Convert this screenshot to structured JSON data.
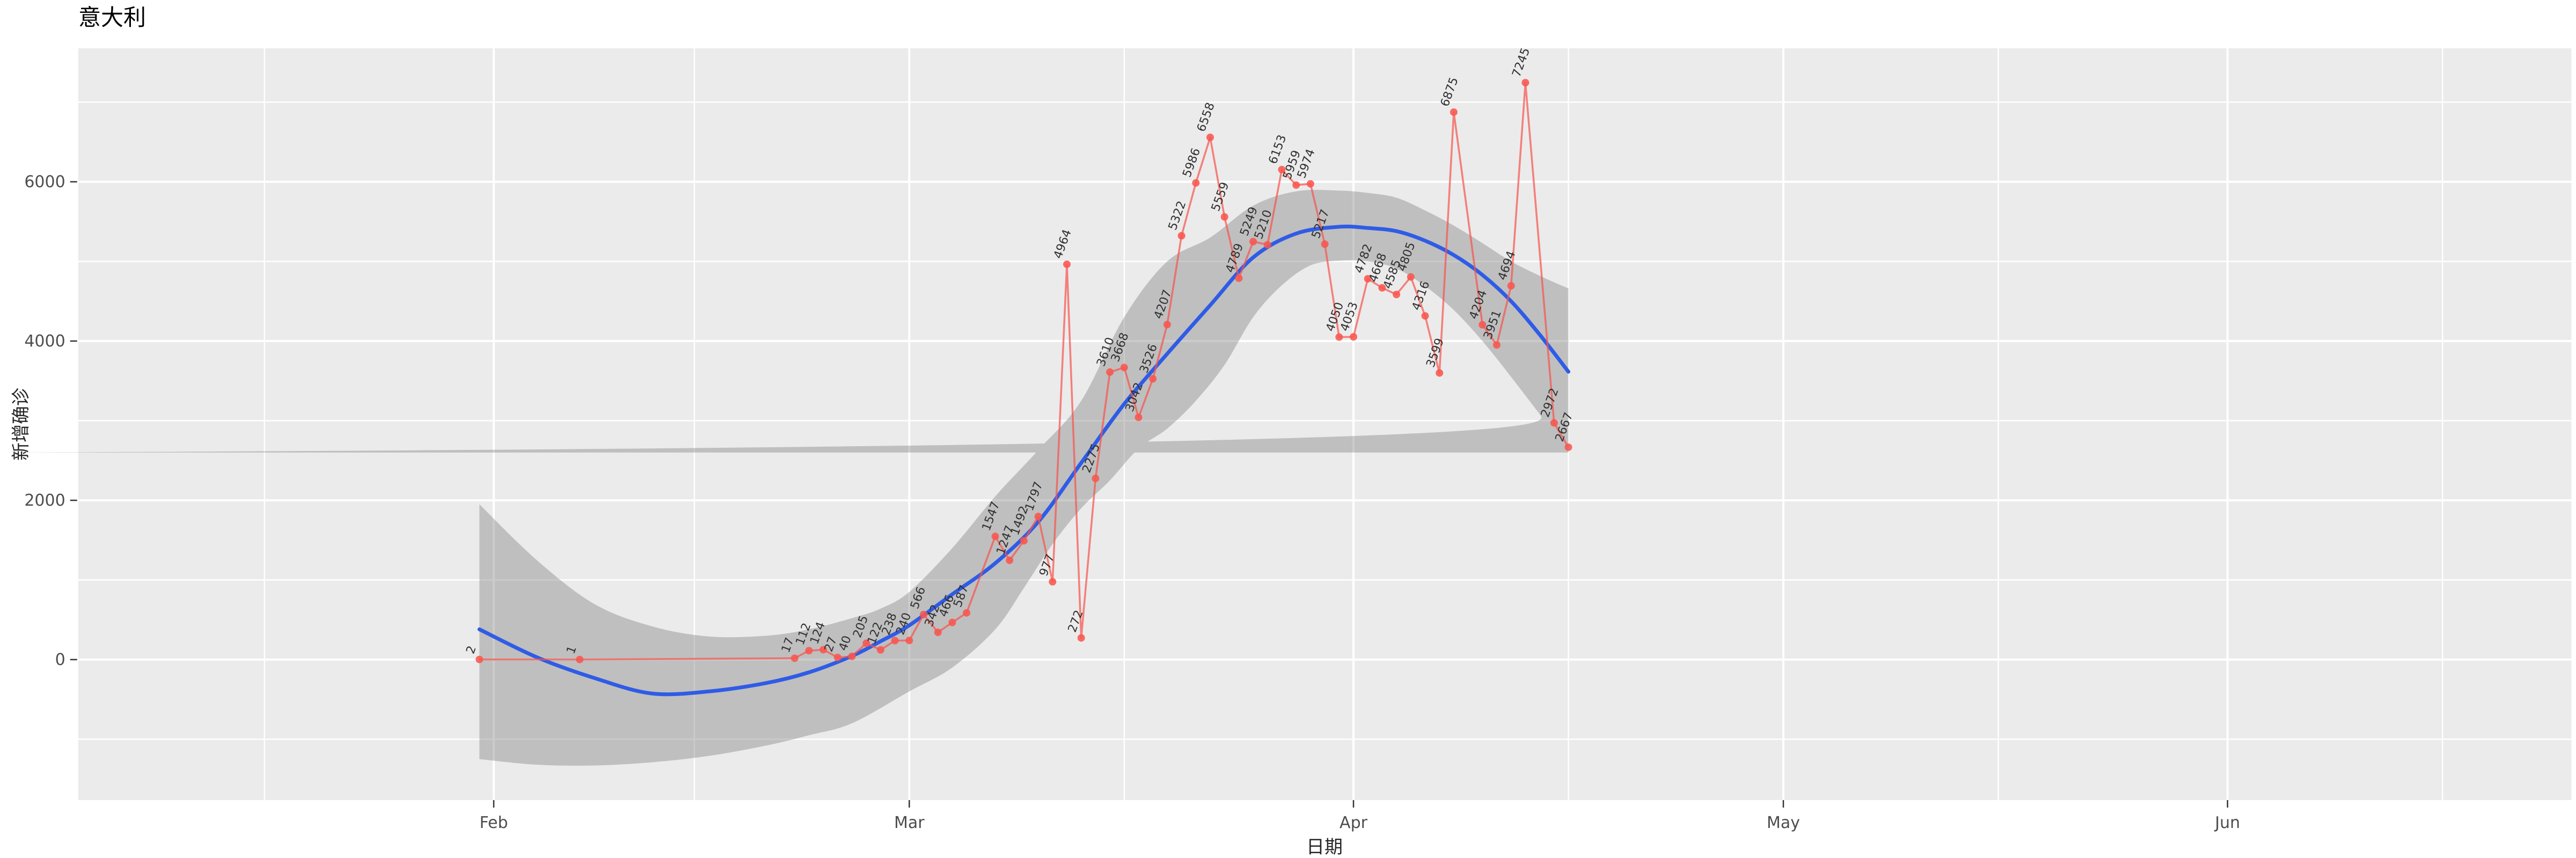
{
  "title": "意大利",
  "chart_data": {
    "type": "line",
    "title": "意大利",
    "xlabel": "日期",
    "ylabel": "新增确诊",
    "grid": true,
    "legend": "none",
    "x_domain": [
      "2020-01-03",
      "2020-06-25"
    ],
    "y_domain": [
      -1764,
      7676
    ],
    "x_ticks": [
      {
        "label": "Feb",
        "date": "2020-02-01"
      },
      {
        "label": "Mar",
        "date": "2020-03-01"
      },
      {
        "label": "Apr",
        "date": "2020-04-01"
      },
      {
        "label": "May",
        "date": "2020-05-01"
      },
      {
        "label": "Jun",
        "date": "2020-06-01"
      }
    ],
    "x_minor_dates": [
      "2020-01-16",
      "2020-02-15",
      "2020-03-16",
      "2020-04-16",
      "2020-05-16",
      "2020-06-16"
    ],
    "y_ticks": [
      {
        "label": "0",
        "value": 0
      },
      {
        "label": "2000",
        "value": 2000
      },
      {
        "label": "4000",
        "value": 4000
      },
      {
        "label": "6000",
        "value": 6000
      }
    ],
    "y_minor": [
      -1000,
      1000,
      3000,
      5000,
      7000
    ],
    "series": [
      {
        "name": "daily-new-confirmed",
        "points": [
          [
            "2020-01-31",
            2
          ],
          [
            "2020-02-07",
            1
          ],
          [
            "2020-02-22",
            17
          ],
          [
            "2020-02-23",
            112
          ],
          [
            "2020-02-24",
            124
          ],
          [
            "2020-02-25",
            27
          ],
          [
            "2020-02-26",
            40
          ],
          [
            "2020-02-27",
            205
          ],
          [
            "2020-02-28",
            122
          ],
          [
            "2020-02-29",
            238
          ],
          [
            "2020-03-01",
            240
          ],
          [
            "2020-03-02",
            566
          ],
          [
            "2020-03-03",
            342
          ],
          [
            "2020-03-04",
            466
          ],
          [
            "2020-03-05",
            587
          ],
          [
            "2020-03-07",
            1547
          ],
          [
            "2020-03-08",
            1247
          ],
          [
            "2020-03-09",
            1492
          ],
          [
            "2020-03-10",
            1797
          ],
          [
            "2020-03-11",
            977
          ],
          [
            "2020-03-12",
            4964
          ],
          [
            "2020-03-13",
            272
          ],
          [
            "2020-03-14",
            2275
          ],
          [
            "2020-03-15",
            3610
          ],
          [
            "2020-03-16",
            3668
          ],
          [
            "2020-03-17",
            3042
          ],
          [
            "2020-03-18",
            3526
          ],
          [
            "2020-03-19",
            4207
          ],
          [
            "2020-03-20",
            5322
          ],
          [
            "2020-03-21",
            5986
          ],
          [
            "2020-03-22",
            6558
          ],
          [
            "2020-03-23",
            5559
          ],
          [
            "2020-03-24",
            4789
          ],
          [
            "2020-03-25",
            5249
          ],
          [
            "2020-03-26",
            5210
          ],
          [
            "2020-03-27",
            6153
          ],
          [
            "2020-03-28",
            5959
          ],
          [
            "2020-03-29",
            5974
          ],
          [
            "2020-03-30",
            5217
          ],
          [
            "2020-03-31",
            4050
          ],
          [
            "2020-04-01",
            4053
          ],
          [
            "2020-04-02",
            4782
          ],
          [
            "2020-04-03",
            4668
          ],
          [
            "2020-04-04",
            4585
          ],
          [
            "2020-04-05",
            4805
          ],
          [
            "2020-04-06",
            4316
          ],
          [
            "2020-04-07",
            3599
          ],
          [
            "2020-04-08",
            6875
          ],
          [
            "2020-04-10",
            4204
          ],
          [
            "2020-04-11",
            3951
          ],
          [
            "2020-04-12",
            4694
          ],
          [
            "2020-04-13",
            7245
          ],
          [
            "2020-04-15",
            2972
          ],
          [
            "2020-04-16",
            2667
          ]
        ]
      }
    ],
    "smooth_line": {
      "name": "loess-fit",
      "points": [
        [
          "2020-01-31",
          380
        ],
        [
          "2020-02-04",
          30
        ],
        [
          "2020-02-08",
          -230
        ],
        [
          "2020-02-12",
          -425
        ],
        [
          "2020-02-16",
          -400
        ],
        [
          "2020-02-20",
          -295
        ],
        [
          "2020-02-23",
          -160
        ],
        [
          "2020-02-26",
          45
        ],
        [
          "2020-02-28",
          230
        ],
        [
          "2020-03-01",
          430
        ],
        [
          "2020-03-04",
          820
        ],
        [
          "2020-03-07",
          1210
        ],
        [
          "2020-03-10",
          1730
        ],
        [
          "2020-03-13",
          2470
        ],
        [
          "2020-03-16",
          3210
        ],
        [
          "2020-03-19",
          3840
        ],
        [
          "2020-03-22",
          4450
        ],
        [
          "2020-03-25",
          5050
        ],
        [
          "2020-03-28",
          5350
        ],
        [
          "2020-03-31",
          5435
        ],
        [
          "2020-04-02",
          5420
        ],
        [
          "2020-04-04",
          5380
        ],
        [
          "2020-04-06",
          5260
        ],
        [
          "2020-04-08",
          5080
        ],
        [
          "2020-04-10",
          4830
        ],
        [
          "2020-04-12",
          4500
        ],
        [
          "2020-04-14",
          4080
        ],
        [
          "2020-04-16",
          3615
        ]
      ]
    },
    "confidence_band": {
      "name": "confidence-interval",
      "upper": [
        [
          "2020-01-31",
          1950
        ],
        [
          "2020-02-04",
          1250
        ],
        [
          "2020-02-08",
          700
        ],
        [
          "2020-02-12",
          420
        ],
        [
          "2020-02-16",
          290
        ],
        [
          "2020-02-20",
          300
        ],
        [
          "2020-02-23",
          380
        ],
        [
          "2020-02-26",
          520
        ],
        [
          "2020-02-28",
          640
        ],
        [
          "2020-03-01",
          850
        ],
        [
          "2020-03-04",
          1400
        ],
        [
          "2020-03-07",
          2050
        ],
        [
          "2020-03-10",
          2630
        ],
        [
          "2020-03-13",
          3250
        ],
        [
          "2020-03-16",
          4300
        ],
        [
          "2020-03-19",
          5000
        ],
        [
          "2020-03-22",
          5300
        ],
        [
          "2020-03-25",
          5700
        ],
        [
          "2020-03-28",
          5880
        ],
        [
          "2020-03-31",
          5890
        ],
        [
          "2020-04-02",
          5860
        ],
        [
          "2020-04-04",
          5800
        ],
        [
          "2020-04-06",
          5640
        ],
        [
          "2020-04-08",
          5450
        ],
        [
          "2020-04-10",
          5230
        ],
        [
          "2020-04-12",
          5000
        ],
        [
          "2020-04-14",
          4820
        ],
        [
          "2020-04-16",
          4660
        ]
      ],
      "lower": [
        [
          "2020-01-31",
          -1250
        ],
        [
          "2020-02-04",
          -1320
        ],
        [
          "2020-02-08",
          -1330
        ],
        [
          "2020-02-12",
          -1290
        ],
        [
          "2020-02-16",
          -1210
        ],
        [
          "2020-02-20",
          -1080
        ],
        [
          "2020-02-23",
          -950
        ],
        [
          "2020-02-26",
          -800
        ],
        [
          "2020-03-01",
          -400
        ],
        [
          "2020-03-04",
          -100
        ],
        [
          "2020-03-07",
          380
        ],
        [
          "2020-03-09",
          900
        ],
        [
          "2020-03-11",
          1450
        ],
        [
          "2020-03-13",
          1900
        ],
        [
          "2020-03-15",
          2250
        ],
        [
          "2020-03-17",
          2650
        ],
        [
          "2020-03-19",
          2900
        ],
        [
          "2020-03-21",
          3250
        ],
        [
          "2020-03-23",
          3700
        ],
        [
          "2020-03-25",
          4300
        ],
        [
          "2020-03-27",
          4700
        ],
        [
          "2020-03-29",
          4950
        ],
        [
          "2020-03-31",
          5010
        ],
        [
          "2020-04-02",
          5000
        ],
        [
          "2020-04-04",
          4910
        ],
        [
          "2020-04-06",
          4690
        ],
        [
          "2020-04-08",
          4390
        ],
        [
          "2020-04-10",
          4000
        ],
        [
          "2020-04-12",
          3550
        ],
        [
          "2020-04-14",
          3080
        ],
        [
          "2020-04-16",
          2600
        ]
      ]
    },
    "colors": {
      "panel": "#EBEBEB",
      "grid": "#FFFFFF",
      "series": "#f7554d",
      "point": "#f8564e",
      "smooth": "#2f5ce6",
      "band": "rgba(125,125,125,0.40)",
      "point_label": "#303030",
      "tick_label": "#4D4D4D",
      "tick_mark": "#333333",
      "title": "#000000",
      "axis_title": "#262626"
    },
    "label_angle_deg": -70
  }
}
